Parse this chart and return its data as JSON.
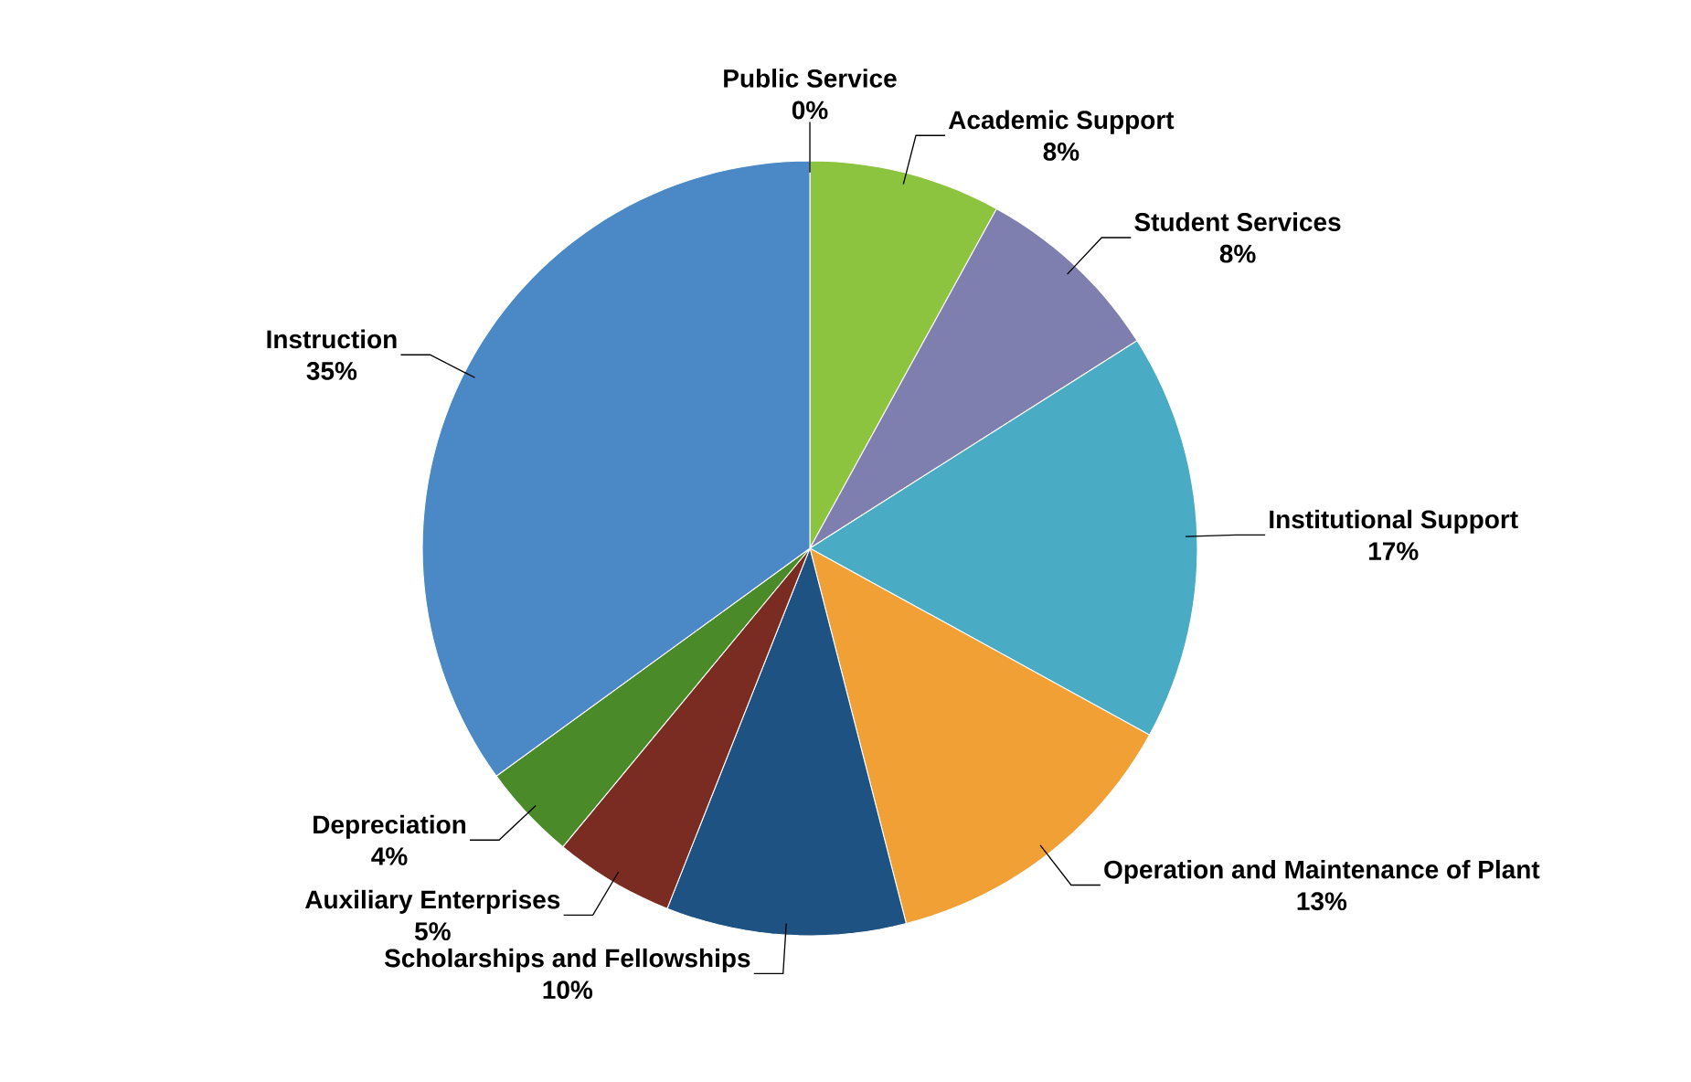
{
  "chart_data": {
    "type": "pie",
    "categories": [
      "Public Service",
      "Academic Support",
      "Student Services",
      "Institutional Support",
      "Operation and Maintenance of Plant",
      "Scholarships and Fellowships",
      "Auxiliary Enterprises",
      "Depreciation",
      "Instruction"
    ],
    "values": [
      0,
      8,
      8,
      17,
      13,
      10,
      5,
      4,
      35
    ],
    "value_labels": [
      "0%",
      "8%",
      "8%",
      "17%",
      "13%",
      "10%",
      "5%",
      "4%",
      "35%"
    ],
    "colors": [
      "#c0504d",
      "#8cc43f",
      "#7f7faf",
      "#4aabc4",
      "#f0a035",
      "#1e5282",
      "#7b2c22",
      "#4a8a28",
      "#4a88c6"
    ],
    "data_labels": true
  }
}
